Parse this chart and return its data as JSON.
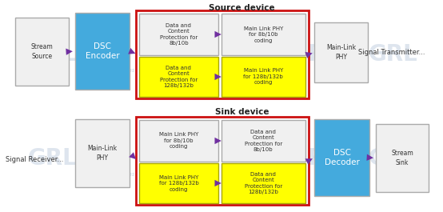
{
  "bg": "#ffffff",
  "red_border": "#cc1111",
  "blue_box": "#44aadd",
  "white_box": "#f0f0f0",
  "yellow_box": "#ffff00",
  "yellow_border": "#aaa800",
  "gray_border": "#aaaaaa",
  "arrow_col": "#7030a0",
  "wm_col": "#c8d4e4",
  "title_source": "Source device",
  "title_sink": "Sink device",
  "sig_tx": "Signal Transmitter...",
  "sig_rx": "Signal Receiver...",
  "src_stream_source": "Stream\nSource",
  "src_dsc_encoder": "DSC\nEncoder",
  "src_data_top": "Data and\nContent\nProtection for\n8b/10b",
  "src_data_bot": "Data and\nContent\nProtection for\n128b/132b",
  "src_phy_top": "Main Link PHY\nfor 8b/10b\ncoding",
  "src_phy_bot": "Main Link PHY\nfor 128b/132b\ncoding",
  "src_mainlink": "Main-Link\nPHY",
  "snk_mainlink": "Main-Link\nPHY",
  "snk_phy_top": "Main Link PHY\nfor 8b/10b\ncoding",
  "snk_phy_bot": "Main Link PHY\nfor 128b/132b\ncoding",
  "snk_data_top": "Data and\nContent\nProtection for\n8b/10b",
  "snk_data_bot": "Data and\nContent\nProtection for\n128b/132b",
  "snk_dsc_decoder": "DSC\nDecoder",
  "snk_stream_sink": "Stream\nSink"
}
